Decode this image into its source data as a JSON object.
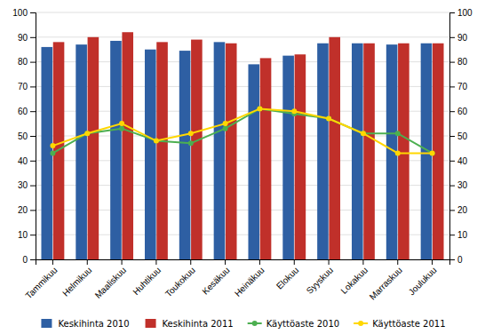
{
  "chart_data": {
    "type": "bar",
    "categories": [
      "Tammikuu",
      "Helmikuu",
      "Maaliskuu",
      "Huhtikuu",
      "Toukokuu",
      "Kesäkuu",
      "Heinäkuu",
      "Elokuu",
      "Syyskuu",
      "Lokakuu",
      "Marraskuu",
      "Joulukuu"
    ],
    "series": [
      {
        "name": "Keskihinta 2010",
        "type": "bar",
        "color": "#2E5FA3",
        "values": [
          86,
          87,
          88.5,
          85,
          84.5,
          88,
          79,
          82.5,
          87.5,
          87.5,
          87,
          87.5
        ]
      },
      {
        "name": "Keskihinta 2011",
        "type": "bar",
        "color": "#C0302A",
        "values": [
          88,
          90,
          92,
          88,
          89,
          87.5,
          81.5,
          83,
          90,
          87.5,
          87.5,
          87.5
        ]
      },
      {
        "name": "Käyttöaste 2010",
        "type": "line",
        "color": "#4CAF50",
        "marker": "circle",
        "axis": "y2",
        "values": [
          43,
          51,
          53,
          48,
          47,
          53,
          61,
          59,
          57,
          51,
          51,
          43
        ]
      },
      {
        "name": "Käyttöaste 2011",
        "type": "line",
        "color": "#FFD700",
        "marker": "circle",
        "axis": "y2",
        "values": [
          46,
          51,
          55,
          48,
          51,
          55,
          61,
          60,
          57,
          51,
          43,
          43
        ]
      }
    ],
    "ylim": [
      0,
      100
    ],
    "yticks": [
      0,
      10,
      20,
      30,
      40,
      50,
      60,
      70,
      80,
      90,
      100
    ],
    "y2lim": [
      0,
      100
    ],
    "y2ticks": [
      0,
      10,
      20,
      30,
      40,
      50,
      60,
      70,
      80,
      90,
      100
    ],
    "grid": true,
    "legend": "bottom"
  }
}
